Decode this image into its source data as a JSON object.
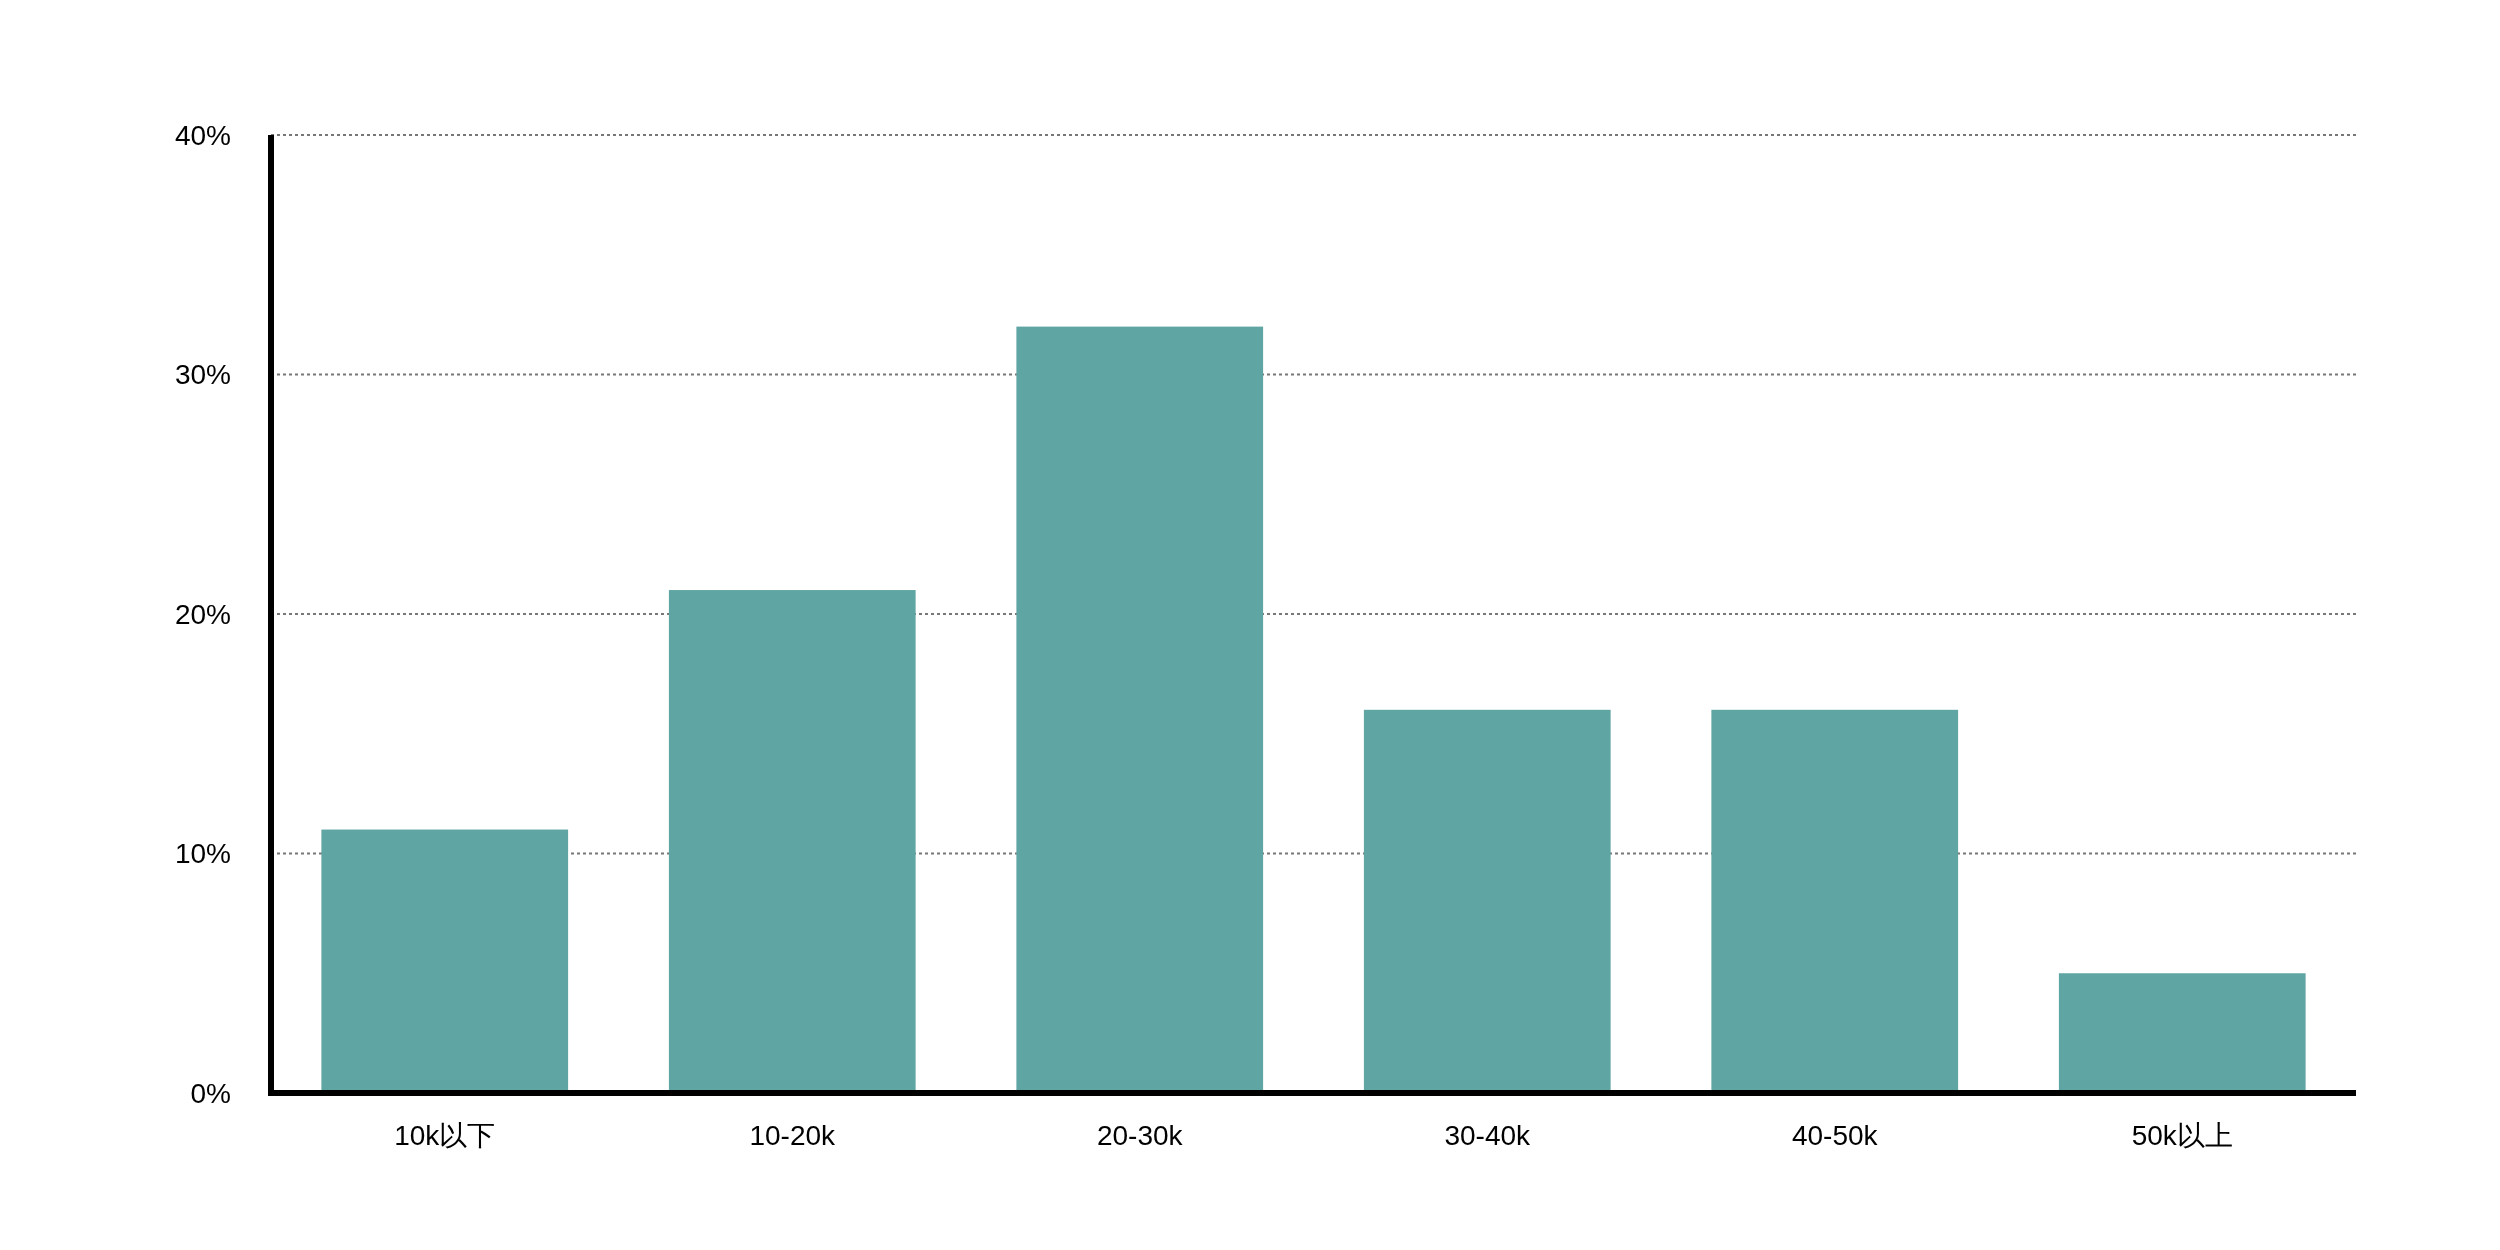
{
  "chart_data": {
    "type": "bar",
    "categories": [
      "10k以下",
      "10-20k",
      "20-30k",
      "30-40k",
      "40-50k",
      "50k以上"
    ],
    "values": [
      11,
      21,
      32,
      16,
      16,
      5
    ],
    "color": "#5fa5a3",
    "ylim": [
      0,
      40
    ],
    "yticks": [
      {
        "value": 0,
        "label": "0%"
      },
      {
        "value": 10,
        "label": "10%"
      },
      {
        "value": 20,
        "label": "20%"
      },
      {
        "value": 30,
        "label": "30%"
      },
      {
        "value": 40,
        "label": "40%"
      }
    ],
    "grid": "y"
  }
}
